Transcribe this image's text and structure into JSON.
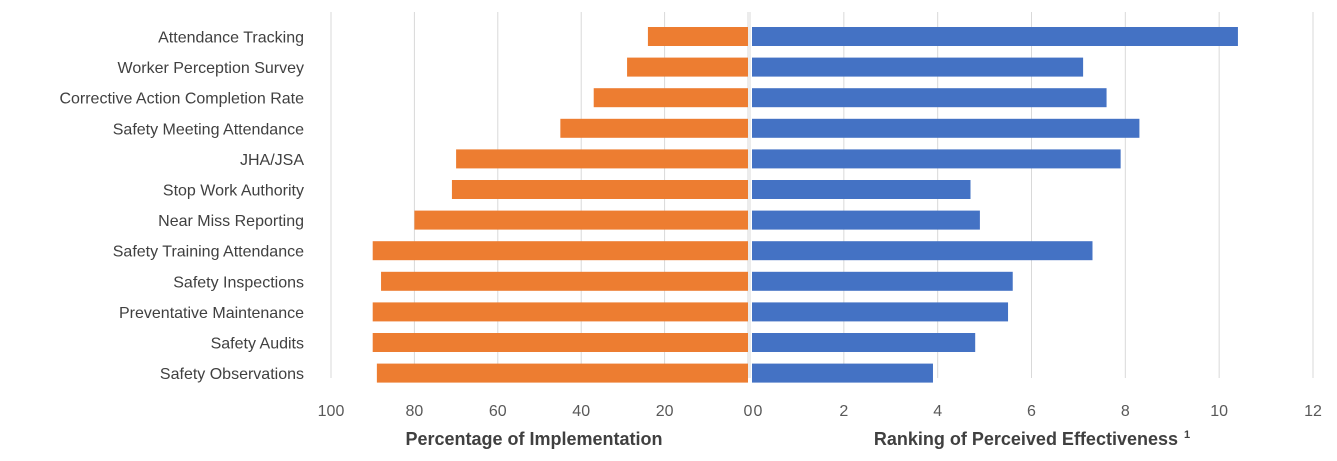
{
  "chart_data": [
    {
      "type": "bar",
      "orientation": "horizontal",
      "direction": "reversed",
      "categories": [
        "Attendance Tracking",
        "Worker Perception Survey",
        "Corrective Action Completion Rate",
        "Safety Meeting Attendance",
        "JHA/JSA",
        "Stop Work Authority",
        "Near Miss Reporting",
        "Safety Training Attendance",
        "Safety Inspections",
        "Preventative Maintenance",
        "Safety Audits",
        "Safety Observations"
      ],
      "values": [
        24,
        29,
        37,
        45,
        70,
        71,
        80,
        90,
        88,
        90,
        90,
        89
      ],
      "xlabel": "Percentage of Implementation",
      "xlim": [
        0,
        100
      ],
      "ticks": [
        "100",
        "80",
        "60",
        "40",
        "20",
        "0"
      ],
      "color": "#ED7D31",
      "grid": true
    },
    {
      "type": "bar",
      "orientation": "horizontal",
      "categories": [
        "Attendance Tracking",
        "Worker Perception Survey",
        "Corrective Action Completion Rate",
        "Safety Meeting Attendance",
        "JHA/JSA",
        "Stop Work Authority",
        "Near Miss Reporting",
        "Safety Training Attendance",
        "Safety Inspections",
        "Preventative Maintenance",
        "Safety Audits",
        "Safety Observations"
      ],
      "values": [
        10.4,
        7.1,
        7.6,
        8.3,
        7.9,
        4.7,
        4.9,
        7.3,
        5.6,
        5.5,
        4.8,
        3.9
      ],
      "xlabel": "Ranking of Perceived Effectiveness",
      "xlabel_superscript": "1",
      "xlim": [
        0,
        12
      ],
      "ticks": [
        "0",
        "2",
        "4",
        "6",
        "8",
        "10",
        "12"
      ],
      "color": "#4472C4",
      "grid": true
    }
  ]
}
